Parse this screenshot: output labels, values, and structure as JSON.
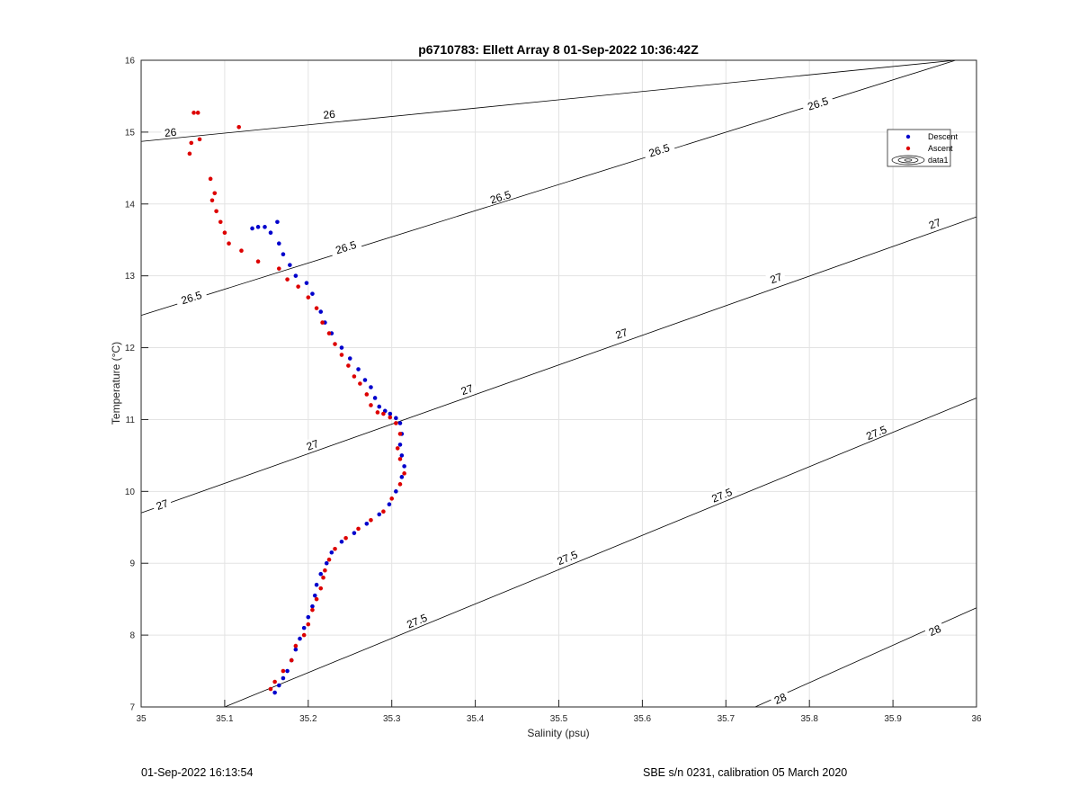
{
  "chart_data": {
    "type": "scatter",
    "title": "p6710783: Ellett Array 8 01-Sep-2022 10:36:42Z",
    "xlabel": "Salinity (psu)",
    "ylabel": "Temperature (°C)",
    "xlim": [
      35,
      36
    ],
    "ylim": [
      7,
      16
    ],
    "xticks": [
      "35",
      "35.1",
      "35.2",
      "35.3",
      "35.4",
      "35.5",
      "35.6",
      "35.7",
      "35.8",
      "35.9",
      "36"
    ],
    "yticks": [
      "7",
      "8",
      "9",
      "10",
      "11",
      "12",
      "13",
      "14",
      "15",
      "16"
    ],
    "grid": true,
    "legend_position": "top-right",
    "legend": [
      "Descent",
      "Ascent",
      "data1"
    ],
    "colors": {
      "descent": "#0000cc",
      "ascent": "#dd0000",
      "contour": "#000000",
      "grid": "#e3e3e3"
    },
    "contours": [
      {
        "level": "26",
        "points": [
          [
            35.0,
            14.87
          ],
          [
            35.975,
            16.0
          ]
        ],
        "labels": [
          [
            35.035,
            15.0
          ],
          [
            35.225,
            15.25
          ]
        ]
      },
      {
        "level": "26.5",
        "points": [
          [
            35.0,
            12.45
          ],
          [
            35.975,
            16.0
          ]
        ],
        "labels": [
          [
            35.06,
            12.7
          ],
          [
            35.245,
            13.4
          ],
          [
            35.43,
            14.1
          ],
          [
            35.62,
            14.75
          ],
          [
            35.81,
            15.4
          ]
        ]
      },
      {
        "level": "27",
        "points": [
          [
            35.0,
            9.7
          ],
          [
            36.0,
            13.82
          ]
        ],
        "labels": [
          [
            35.025,
            9.82
          ],
          [
            35.205,
            10.65
          ],
          [
            35.39,
            11.42
          ],
          [
            35.575,
            12.2
          ],
          [
            35.76,
            12.97
          ],
          [
            35.95,
            13.73
          ]
        ]
      },
      {
        "level": "27.5",
        "points": [
          [
            35.1,
            7.0
          ],
          [
            36.0,
            11.3
          ]
        ],
        "labels": [
          [
            35.33,
            8.2
          ],
          [
            35.51,
            9.08
          ],
          [
            35.695,
            9.95
          ],
          [
            35.88,
            10.82
          ]
        ]
      },
      {
        "level": "28",
        "points": [
          [
            35.735,
            7.0
          ],
          [
            36.0,
            8.38
          ]
        ],
        "labels": [
          [
            35.765,
            7.12
          ],
          [
            35.95,
            8.07
          ]
        ]
      }
    ],
    "series": [
      {
        "name": "Descent",
        "points": [
          [
            35.16,
            7.2
          ],
          [
            35.165,
            7.3
          ],
          [
            35.17,
            7.4
          ],
          [
            35.175,
            7.5
          ],
          [
            35.18,
            7.65
          ],
          [
            35.185,
            7.8
          ],
          [
            35.19,
            7.95
          ],
          [
            35.195,
            8.1
          ],
          [
            35.2,
            8.25
          ],
          [
            35.205,
            8.4
          ],
          [
            35.208,
            8.55
          ],
          [
            35.21,
            8.7
          ],
          [
            35.215,
            8.85
          ],
          [
            35.222,
            9.0
          ],
          [
            35.228,
            9.15
          ],
          [
            35.24,
            9.3
          ],
          [
            35.255,
            9.42
          ],
          [
            35.27,
            9.55
          ],
          [
            35.285,
            9.68
          ],
          [
            35.297,
            9.82
          ],
          [
            35.305,
            10.0
          ],
          [
            35.312,
            10.2
          ],
          [
            35.315,
            10.35
          ],
          [
            35.312,
            10.5
          ],
          [
            35.31,
            10.65
          ],
          [
            35.312,
            10.8
          ],
          [
            35.31,
            10.95
          ],
          [
            35.305,
            11.02
          ],
          [
            35.298,
            11.08
          ],
          [
            35.292,
            11.12
          ],
          [
            35.285,
            11.18
          ],
          [
            35.28,
            11.3
          ],
          [
            35.275,
            11.45
          ],
          [
            35.268,
            11.55
          ],
          [
            35.26,
            11.7
          ],
          [
            35.25,
            11.85
          ],
          [
            35.24,
            12.0
          ],
          [
            35.228,
            12.2
          ],
          [
            35.22,
            12.35
          ],
          [
            35.215,
            12.5
          ],
          [
            35.205,
            12.75
          ],
          [
            35.198,
            12.9
          ],
          [
            35.185,
            13.0
          ],
          [
            35.178,
            13.15
          ],
          [
            35.17,
            13.3
          ],
          [
            35.165,
            13.45
          ],
          [
            35.155,
            13.6
          ],
          [
            35.148,
            13.68
          ],
          [
            35.14,
            13.68
          ],
          [
            35.133,
            13.66
          ],
          [
            35.163,
            13.75
          ]
        ]
      },
      {
        "name": "Ascent",
        "points": [
          [
            35.155,
            7.25
          ],
          [
            35.16,
            7.35
          ],
          [
            35.17,
            7.5
          ],
          [
            35.18,
            7.65
          ],
          [
            35.185,
            7.85
          ],
          [
            35.195,
            8.0
          ],
          [
            35.2,
            8.15
          ],
          [
            35.205,
            8.35
          ],
          [
            35.21,
            8.5
          ],
          [
            35.215,
            8.65
          ],
          [
            35.218,
            8.8
          ],
          [
            35.22,
            8.9
          ],
          [
            35.225,
            9.05
          ],
          [
            35.232,
            9.2
          ],
          [
            35.245,
            9.35
          ],
          [
            35.26,
            9.48
          ],
          [
            35.275,
            9.6
          ],
          [
            35.29,
            9.72
          ],
          [
            35.3,
            9.9
          ],
          [
            35.31,
            10.1
          ],
          [
            35.315,
            10.25
          ],
          [
            35.31,
            10.45
          ],
          [
            35.307,
            10.6
          ],
          [
            35.31,
            10.8
          ],
          [
            35.305,
            10.95
          ],
          [
            35.298,
            11.03
          ],
          [
            35.29,
            11.08
          ],
          [
            35.283,
            11.1
          ],
          [
            35.275,
            11.2
          ],
          [
            35.27,
            11.35
          ],
          [
            35.262,
            11.5
          ],
          [
            35.255,
            11.6
          ],
          [
            35.248,
            11.75
          ],
          [
            35.24,
            11.9
          ],
          [
            35.232,
            12.05
          ],
          [
            35.225,
            12.2
          ],
          [
            35.217,
            12.35
          ],
          [
            35.21,
            12.55
          ],
          [
            35.2,
            12.7
          ],
          [
            35.188,
            12.85
          ],
          [
            35.175,
            12.95
          ],
          [
            35.165,
            13.1
          ],
          [
            35.14,
            13.2
          ],
          [
            35.12,
            13.35
          ],
          [
            35.105,
            13.45
          ],
          [
            35.1,
            13.6
          ],
          [
            35.095,
            13.75
          ],
          [
            35.09,
            13.9
          ],
          [
            35.085,
            14.05
          ],
          [
            35.088,
            14.15
          ],
          [
            35.083,
            14.35
          ],
          [
            35.07,
            14.9
          ],
          [
            35.06,
            14.85
          ],
          [
            35.058,
            14.7
          ],
          [
            35.063,
            15.27
          ],
          [
            35.068,
            15.27
          ],
          [
            35.117,
            15.07
          ]
        ]
      }
    ]
  },
  "footer": {
    "left": "01-Sep-2022 16:13:54",
    "right": "SBE s/n 0231, calibration 05 March 2020"
  }
}
